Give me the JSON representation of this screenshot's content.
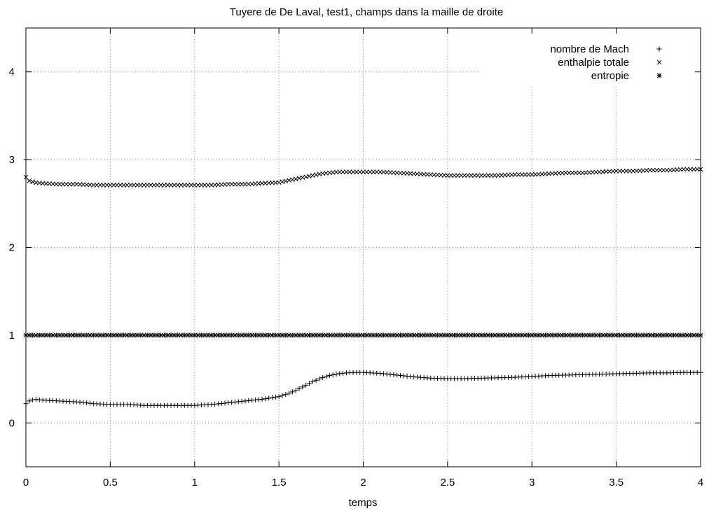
{
  "chart_data": {
    "type": "scatter",
    "title": "Tuyere de De Laval, test1, champs dans la maille de droite",
    "xlabel": "temps",
    "ylabel": "",
    "xlim": [
      0,
      4
    ],
    "ylim": [
      -0.5,
      4.5
    ],
    "xticks": [
      "0",
      "0.5",
      "1",
      "1.5",
      "2",
      "2.5",
      "3",
      "3.5",
      "4"
    ],
    "yticks": [
      "0",
      "1",
      "2",
      "3",
      "4"
    ],
    "grid": true,
    "legend_position": "top-right",
    "series": [
      {
        "name": "nombre de Mach",
        "marker": "+",
        "x": [
          0,
          0.02,
          0.05,
          0.1,
          0.2,
          0.3,
          0.4,
          0.5,
          0.6,
          0.7,
          0.8,
          0.9,
          1.0,
          1.1,
          1.2,
          1.3,
          1.4,
          1.5,
          1.55,
          1.6,
          1.65,
          1.7,
          1.75,
          1.8,
          1.85,
          1.9,
          1.95,
          2.0,
          2.1,
          2.2,
          2.3,
          2.4,
          2.5,
          2.6,
          2.7,
          2.8,
          2.9,
          3.0,
          3.1,
          3.2,
          3.3,
          3.4,
          3.5,
          3.6,
          3.7,
          3.8,
          3.9,
          4.0
        ],
        "y": [
          0.22,
          0.25,
          0.27,
          0.26,
          0.25,
          0.24,
          0.22,
          0.21,
          0.21,
          0.2,
          0.2,
          0.2,
          0.2,
          0.21,
          0.23,
          0.25,
          0.27,
          0.3,
          0.33,
          0.37,
          0.42,
          0.47,
          0.51,
          0.54,
          0.56,
          0.57,
          0.575,
          0.575,
          0.565,
          0.545,
          0.525,
          0.51,
          0.505,
          0.505,
          0.51,
          0.515,
          0.52,
          0.53,
          0.54,
          0.545,
          0.55,
          0.555,
          0.56,
          0.565,
          0.57,
          0.57,
          0.575,
          0.575
        ]
      },
      {
        "name": "enthalpie totale",
        "marker": "x",
        "x": [
          0,
          0.02,
          0.05,
          0.1,
          0.2,
          0.3,
          0.4,
          0.5,
          0.6,
          0.7,
          0.8,
          0.9,
          1.0,
          1.1,
          1.2,
          1.3,
          1.4,
          1.5,
          1.55,
          1.6,
          1.65,
          1.7,
          1.75,
          1.8,
          1.85,
          1.9,
          1.95,
          2.0,
          2.1,
          2.2,
          2.3,
          2.4,
          2.5,
          2.6,
          2.7,
          2.8,
          2.9,
          3.0,
          3.1,
          3.2,
          3.3,
          3.4,
          3.5,
          3.6,
          3.7,
          3.8,
          3.9,
          4.0
        ],
        "y": [
          2.8,
          2.76,
          2.74,
          2.73,
          2.72,
          2.72,
          2.71,
          2.71,
          2.71,
          2.71,
          2.71,
          2.71,
          2.71,
          2.71,
          2.72,
          2.72,
          2.73,
          2.74,
          2.76,
          2.78,
          2.8,
          2.82,
          2.84,
          2.85,
          2.86,
          2.86,
          2.86,
          2.86,
          2.86,
          2.85,
          2.84,
          2.83,
          2.82,
          2.82,
          2.82,
          2.82,
          2.83,
          2.83,
          2.84,
          2.85,
          2.85,
          2.86,
          2.87,
          2.87,
          2.88,
          2.88,
          2.89,
          2.89
        ]
      },
      {
        "name": "entropie",
        "marker": "*",
        "x": [
          0,
          0.02,
          0.05,
          0.1,
          0.2,
          0.3,
          0.4,
          0.5,
          0.6,
          0.7,
          0.8,
          0.9,
          1.0,
          1.1,
          1.2,
          1.3,
          1.4,
          1.5,
          1.6,
          1.7,
          1.8,
          1.9,
          2.0,
          2.1,
          2.2,
          2.3,
          2.4,
          2.5,
          2.6,
          2.7,
          2.8,
          2.9,
          3.0,
          3.1,
          3.2,
          3.3,
          3.4,
          3.5,
          3.6,
          3.7,
          3.8,
          3.9,
          4.0
        ],
        "y": [
          1.0,
          1.0,
          1.0,
          1.0,
          1.0,
          1.0,
          1.0,
          1.0,
          1.0,
          1.0,
          1.0,
          1.0,
          1.0,
          1.0,
          1.0,
          1.0,
          1.0,
          1.0,
          1.0,
          1.0,
          1.0,
          1.0,
          1.0,
          1.0,
          1.0,
          1.0,
          1.0,
          1.0,
          1.0,
          1.0,
          1.0,
          1.0,
          1.0,
          1.0,
          1.0,
          1.0,
          1.0,
          1.0,
          1.0,
          1.0,
          1.0,
          1.0,
          1.0
        ]
      },
      {
        "name": "",
        "marker": "+",
        "x": [
          0
        ],
        "y": [
          3.0
        ]
      }
    ]
  }
}
